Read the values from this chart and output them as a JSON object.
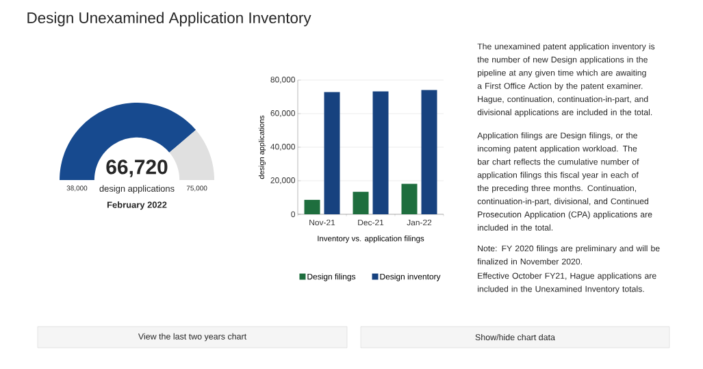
{
  "chart_data": [
    {
      "type": "donut",
      "title": "Design Unexamined Application Inventory",
      "categories": [
        null,
        null
      ],
      "values": [
        77.6,
        22.4
      ],
      "colors": [
        "#174a8f",
        "#e0e0e0"
      ],
      "annotations": [
        "66,720",
        "design applications",
        "February 2022",
        "38,000",
        "75,000"
      ]
    },
    {
      "type": "bar",
      "categories": [
        "Nov-21",
        "Dec-21",
        "Jan-22"
      ],
      "series": [
        {
          "name": "Design filings",
          "color": "#1e6e3e",
          "values": [
            8600,
            13400,
            18200
          ]
        },
        {
          "name": "Design inventory",
          "color": "#17427f",
          "values": [
            72900,
            73300,
            74100
          ]
        }
      ],
      "ylim": [
        0,
        80000
      ],
      "yticks": [
        {
          "value": 0,
          "label": "0"
        },
        {
          "value": 20000,
          "label": "20,000"
        },
        {
          "value": 40000,
          "label": "40,000"
        },
        {
          "value": 60000,
          "label": "60,000"
        },
        {
          "value": 80000,
          "label": "80,000"
        }
      ],
      "xlabel": "Inventory vs. application filings",
      "ylabel": "design applications",
      "grid": "y",
      "legend": "bottom",
      "annotations": [
        "The unexamined patent application inventory is the number of new Design applications in the pipeline at any given time which are awaiting a First Office Action by the patent examiner. Hague, continuation, continuation-in-part, and divisional applications are included in the total.",
        "Application filings are Design filings, or the incoming patent application workload. The bar chart reflects the cumulative number of application filings this fiscal year in each of the preceding three months. Continuation, continuation-in-part, divisional, and Continued Prosecution Application (CPA) applications are included in the total.",
        "Note: FY 2020 filings are preliminary and will be finalized in November 2020.",
        "Effective October FY21, Hague applications are included in the Unexamined Inventory totals.",
        "View the last two years chart",
        "Show/hide chart data"
      ]
    }
  ]
}
